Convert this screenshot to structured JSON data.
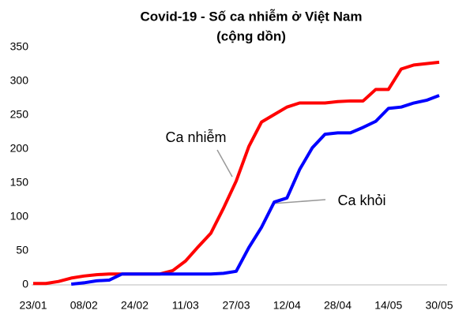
{
  "chart_data": {
    "type": "line",
    "title": "Covid-19 - Số  ca  nhiễm  ở  Việt Nam",
    "subtitle": "(cộng  dồn)",
    "categories": [
      "23/01",
      null,
      null,
      null,
      "08/02",
      null,
      null,
      null,
      "24/02",
      null,
      null,
      null,
      "11/03",
      null,
      null,
      null,
      "27/03",
      null,
      null,
      null,
      "12/04",
      null,
      null,
      null,
      "28/04",
      null,
      null,
      null,
      "14/05",
      null,
      null,
      null,
      "30/05"
    ],
    "series": [
      {
        "name": "Ca nhiễm",
        "color": "#ff0000",
        "values": [
          2,
          2,
          5,
          10,
          13,
          15,
          16,
          16,
          16,
          16,
          16,
          21,
          35,
          56,
          76,
          113,
          153,
          204,
          240,
          251,
          262,
          268,
          268,
          268,
          270,
          271,
          271,
          288,
          288,
          318,
          324,
          326,
          328
        ]
      },
      {
        "name": "Ca khỏi",
        "color": "#0000ff",
        "values": [
          null,
          null,
          null,
          1,
          3,
          6,
          7,
          16,
          16,
          16,
          16,
          16,
          16,
          16,
          16,
          17,
          20,
          55,
          85,
          122,
          128,
          170,
          202,
          222,
          224,
          224,
          232,
          241,
          260,
          262,
          268,
          272,
          279
        ]
      }
    ],
    "ylim": [
      0,
      350
    ],
    "yticks": [
      0,
      50,
      100,
      150,
      200,
      250,
      300,
      350
    ],
    "grid": false
  }
}
